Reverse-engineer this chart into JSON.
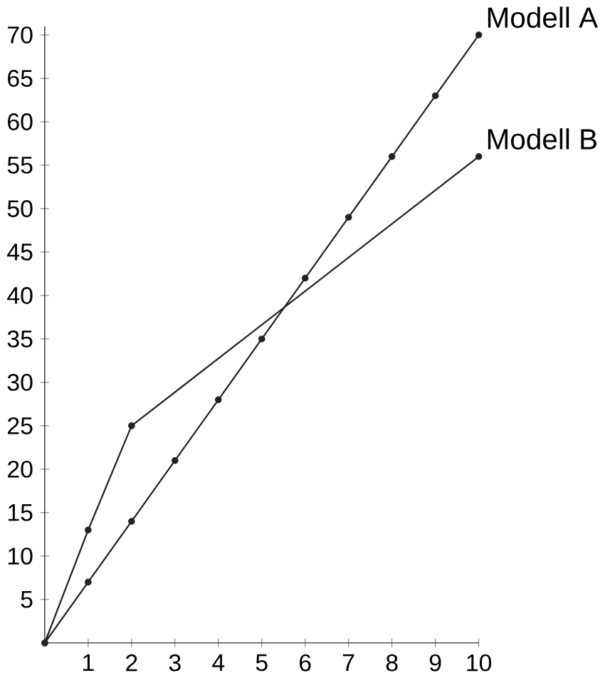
{
  "chart_data": {
    "type": "line",
    "x": [
      0,
      1,
      2,
      3,
      4,
      5,
      6,
      7,
      8,
      9,
      10
    ],
    "series": [
      {
        "name": "Modell A",
        "color": "#222222",
        "values": [
          0,
          7,
          14,
          21,
          28,
          35,
          42,
          49,
          56,
          63,
          70
        ]
      },
      {
        "name": "Modell B",
        "color": "#222222",
        "x": [
          0,
          1,
          2,
          10
        ],
        "values": [
          0,
          13,
          25,
          56
        ]
      }
    ],
    "xlim": [
      0,
      10
    ],
    "ylim": [
      0,
      71
    ],
    "xticks": [
      1,
      2,
      3,
      4,
      5,
      6,
      7,
      8,
      9,
      10
    ],
    "yticks": [
      5,
      10,
      15,
      20,
      25,
      30,
      35,
      40,
      45,
      50,
      55,
      60,
      65,
      70
    ],
    "grid": false,
    "legend": false,
    "marker": "circle",
    "line_style": "solid"
  }
}
